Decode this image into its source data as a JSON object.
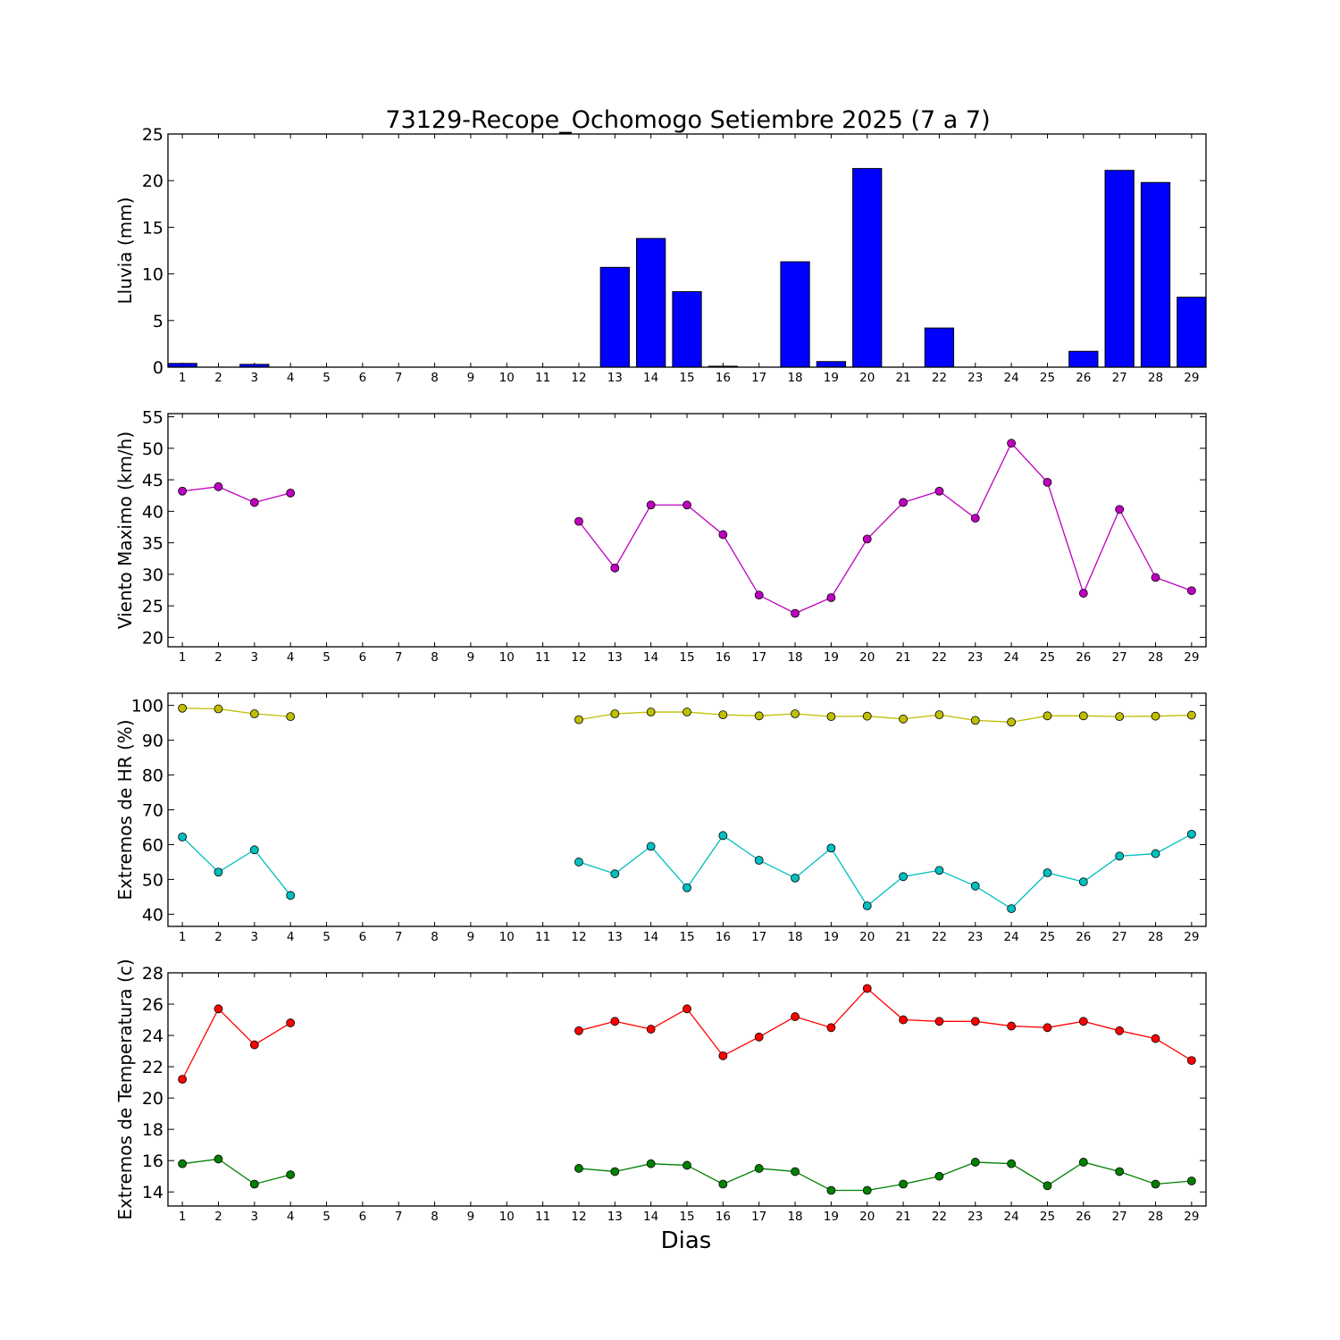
{
  "chart_data": {
    "title": "73129-Recope_Ochomogo Setiembre 2025  (7 a 7)",
    "xlabel": "Dias",
    "days": [
      1,
      2,
      3,
      4,
      5,
      6,
      7,
      8,
      9,
      10,
      11,
      12,
      13,
      14,
      15,
      16,
      17,
      18,
      19,
      20,
      21,
      22,
      23,
      24,
      25,
      26,
      27,
      28,
      29
    ],
    "panels": [
      {
        "type": "bar",
        "ylabel": "Lluvia (mm)",
        "ylim": [
          0,
          25
        ],
        "yticks": [
          0,
          5,
          10,
          15,
          20,
          25
        ],
        "series": [
          {
            "color": "#0000ff",
            "values": [
              0.4,
              0,
              0.3,
              0,
              0,
              0,
              0,
              0,
              0,
              0,
              0,
              0,
              10.7,
              13.8,
              8.1,
              0.1,
              0,
              11.3,
              0.6,
              21.3,
              0,
              4.2,
              0,
              0,
              0,
              1.7,
              21.1,
              19.8,
              7.5
            ]
          }
        ]
      },
      {
        "type": "line",
        "ylabel": "Viento Maximo (km/h)",
        "ylim": [
          18.5,
          55.5
        ],
        "yticks": [
          20,
          25,
          30,
          35,
          40,
          45,
          50,
          55
        ],
        "series": [
          {
            "color": "#bf00bf",
            "values": [
              43.2,
              43.9,
              41.4,
              42.9,
              null,
              null,
              null,
              null,
              null,
              null,
              null,
              38.4,
              31.0,
              41.0,
              41.0,
              36.3,
              26.7,
              23.8,
              26.3,
              35.6,
              41.4,
              43.2,
              38.9,
              50.8,
              44.6,
              27.0,
              40.3,
              29.5,
              27.4
            ]
          }
        ]
      },
      {
        "type": "line",
        "ylabel": "Extremos de HR (%)",
        "ylim": [
          36.5,
          103.5
        ],
        "yticks": [
          40,
          50,
          60,
          70,
          80,
          90,
          100
        ],
        "series": [
          {
            "color": "#bfbf00",
            "values": [
              99.2,
              99.0,
              97.6,
              96.8,
              null,
              null,
              null,
              null,
              null,
              null,
              null,
              95.9,
              97.6,
              98.1,
              98.1,
              97.3,
              97.0,
              97.6,
              96.8,
              96.9,
              96.1,
              97.3,
              95.7,
              95.2,
              97.0,
              97.0,
              96.8,
              96.9,
              97.2
            ]
          },
          {
            "color": "#00bfbf",
            "values": [
              62.2,
              52.1,
              58.5,
              45.4,
              null,
              null,
              null,
              null,
              null,
              null,
              null,
              55.0,
              51.6,
              59.5,
              47.6,
              62.6,
              55.5,
              50.4,
              59.0,
              42.4,
              50.8,
              52.6,
              48.1,
              41.6,
              51.9,
              49.3,
              56.7,
              57.4,
              63.0
            ]
          }
        ]
      },
      {
        "type": "line",
        "ylabel": "Extremos de Temperatura (c)",
        "ylim": [
          13.1,
          28
        ],
        "yticks": [
          14,
          16,
          18,
          20,
          22,
          24,
          26,
          28
        ],
        "series": [
          {
            "color": "#ff0000",
            "values": [
              21.2,
              25.7,
              23.4,
              24.8,
              null,
              null,
              null,
              null,
              null,
              null,
              null,
              24.3,
              24.9,
              24.4,
              25.7,
              22.7,
              23.9,
              25.2,
              24.5,
              27.0,
              25.0,
              24.9,
              24.9,
              24.6,
              24.5,
              24.9,
              24.3,
              23.8,
              22.4
            ]
          },
          {
            "color": "#008000",
            "values": [
              15.8,
              16.1,
              14.5,
              15.1,
              null,
              null,
              null,
              null,
              null,
              null,
              null,
              15.5,
              15.3,
              15.8,
              15.7,
              14.5,
              15.5,
              15.3,
              14.1,
              14.1,
              14.5,
              15.0,
              15.9,
              15.8,
              14.4,
              15.9,
              15.3,
              14.5,
              14.7
            ]
          }
        ]
      }
    ]
  }
}
